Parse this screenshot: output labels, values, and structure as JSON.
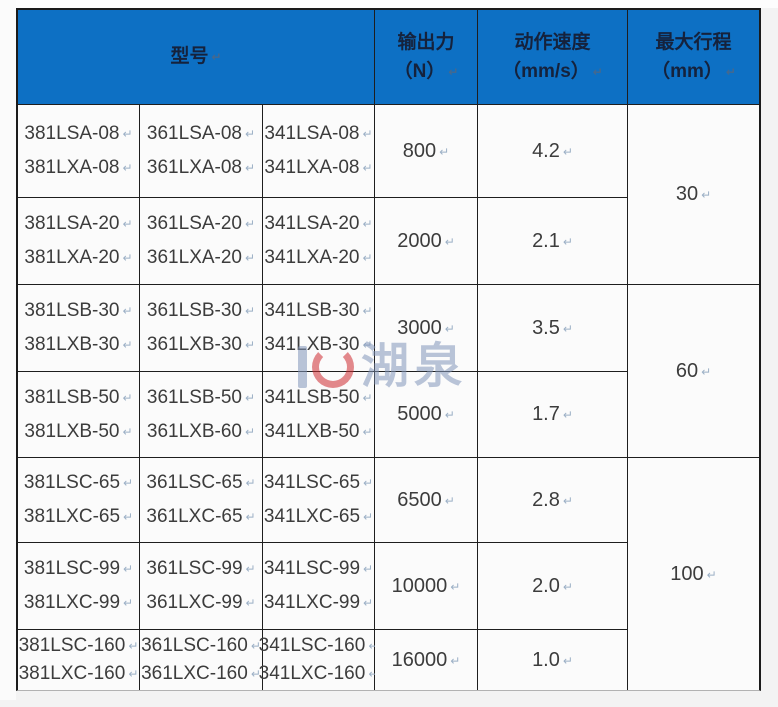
{
  "colors": {
    "header_bg": "#0d70c4",
    "header_text": "#15223c",
    "body_text": "#3c3c3c",
    "border": "#1e1e1e",
    "cell_bg": "#fbfbfb",
    "mark": "#9cb0c6",
    "watermark_blue": "#8296ba",
    "watermark_red": "#ce2b31"
  },
  "marks": {
    "return": "↵"
  },
  "watermark": {
    "text": "湖泉"
  },
  "table": {
    "headers": {
      "model": "型号",
      "force_line1": "输出力",
      "force_line2": "（N）",
      "speed_line1": "动作速度",
      "speed_line2": "（mm/s）",
      "stroke_line1": "最大行程",
      "stroke_line2": "（mm）"
    },
    "rows": [
      {
        "models": [
          [
            "381LSA-08",
            "381LXA-08"
          ],
          [
            "361LSA-08",
            "361LXA-08"
          ],
          [
            "341LSA-08",
            "341LXA-08"
          ]
        ],
        "force": "800",
        "speed": "4.2"
      },
      {
        "models": [
          [
            "381LSA-20",
            "381LXA-20"
          ],
          [
            "361LSA-20",
            "361LXA-20"
          ],
          [
            "341LSA-20",
            "341LXA-20"
          ]
        ],
        "force": "2000",
        "speed": "2.1"
      },
      {
        "models": [
          [
            "381LSB-30",
            "381LXB-30"
          ],
          [
            "361LSB-30",
            "361LXB-30"
          ],
          [
            "341LSB-30",
            "341LXB-30"
          ]
        ],
        "force": "3000",
        "speed": "3.5"
      },
      {
        "models": [
          [
            "381LSB-50",
            "381LXB-50"
          ],
          [
            "361LSB-50",
            "361LXB-60"
          ],
          [
            "341LSB-50",
            "341LXB-50"
          ]
        ],
        "force": "5000",
        "speed": "1.7"
      },
      {
        "models": [
          [
            "381LSC-65",
            "381LXC-65"
          ],
          [
            "361LSC-65",
            "361LXC-65"
          ],
          [
            "341LSC-65",
            "341LXC-65"
          ]
        ],
        "force": "6500",
        "speed": "2.8"
      },
      {
        "models": [
          [
            "381LSC-99",
            "381LXC-99"
          ],
          [
            "361LSC-99",
            "361LXC-99"
          ],
          [
            "341LSC-99",
            "341LXC-99"
          ]
        ],
        "force": "10000",
        "speed": "2.0"
      },
      {
        "models": [
          [
            "381LSC-160",
            "381LXC-160"
          ],
          [
            "361LSC-160",
            "361LXC-160"
          ],
          [
            "341LSC-160",
            "341LXC-160"
          ]
        ],
        "force": "16000",
        "speed": "1.0"
      }
    ],
    "strokes": [
      {
        "value": "30"
      },
      {
        "value": "60"
      },
      {
        "value": "100"
      }
    ]
  }
}
